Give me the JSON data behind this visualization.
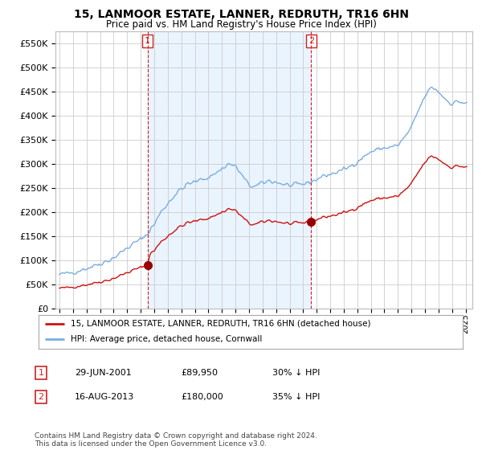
{
  "title": "15, LANMOOR ESTATE, LANNER, REDRUTH, TR16 6HN",
  "subtitle": "Price paid vs. HM Land Registry's House Price Index (HPI)",
  "legend_line1": "15, LANMOOR ESTATE, LANNER, REDRUTH, TR16 6HN (detached house)",
  "legend_line2": "HPI: Average price, detached house, Cornwall",
  "footnote": "Contains HM Land Registry data © Crown copyright and database right 2024.\nThis data is licensed under the Open Government Licence v3.0.",
  "transaction1": {
    "label": "1",
    "date": "29-JUN-2001",
    "price": "£89,950",
    "note": "30% ↓ HPI"
  },
  "transaction2": {
    "label": "2",
    "date": "16-AUG-2013",
    "price": "£180,000",
    "note": "35% ↓ HPI"
  },
  "hpi_color": "#7aade0",
  "hpi_fill": "#ddeeff",
  "price_color": "#cc1111",
  "marker_color": "#990000",
  "vline_color": "#cc2222",
  "background_color": "#ffffff",
  "grid_color": "#cccccc",
  "ylim": [
    0,
    575000
  ],
  "yticks": [
    0,
    50000,
    100000,
    150000,
    200000,
    250000,
    300000,
    350000,
    400000,
    450000,
    500000,
    550000
  ],
  "xlim_start": 1994.7,
  "xlim_end": 2025.5,
  "sale1_year": 2001.5,
  "sale1_price": 89950,
  "sale2_year": 2013.6,
  "sale2_price": 180000
}
